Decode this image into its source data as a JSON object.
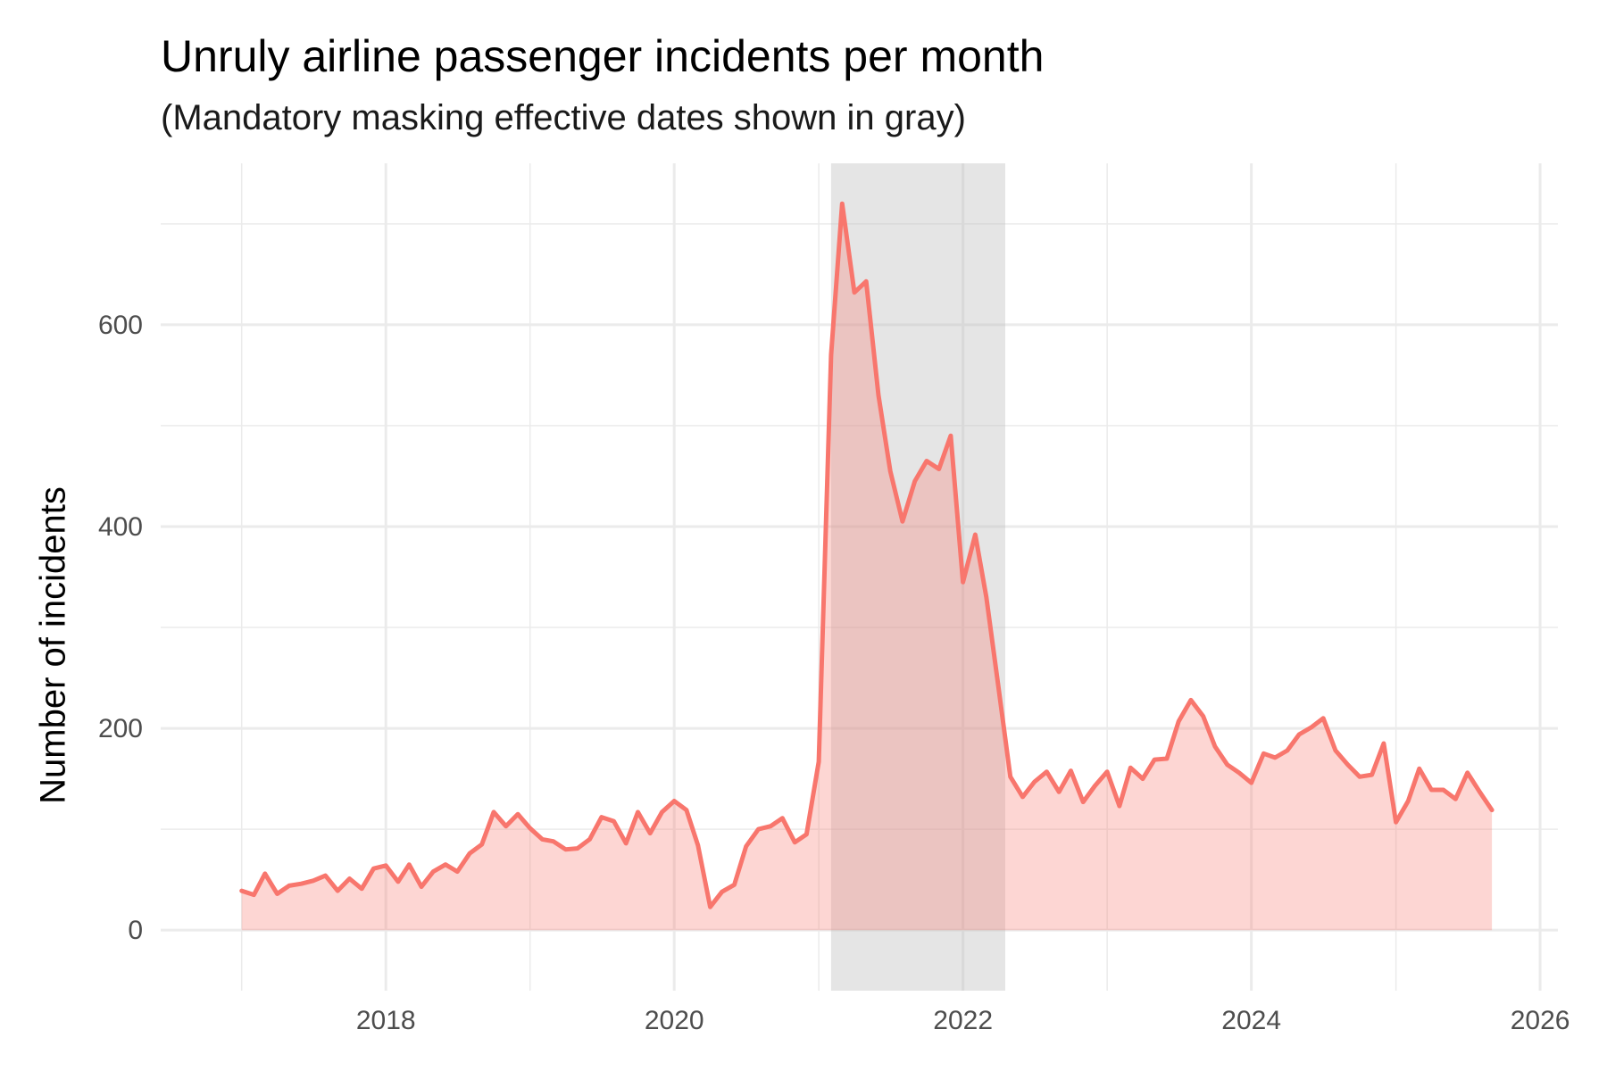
{
  "title": "Unruly airline passenger incidents per month",
  "subtitle": "(Mandatory masking effective dates shown in gray)",
  "colors": {
    "line": "#F8766D",
    "area": "#F8766D",
    "band": "#bdbdbd",
    "grid": "#ebebeb"
  },
  "chart_data": {
    "type": "area",
    "title": "Unruly airline passenger incidents per month",
    "subtitle": "(Mandatory masking effective dates shown in gray)",
    "xlabel": "",
    "ylabel": "Number of incidents",
    "xlim": [
      "2016-06-10",
      "2026-02-15"
    ],
    "ylim": [
      -60,
      760
    ],
    "x_ticks": [
      "2018-01-01",
      "2020-01-01",
      "2022-01-01",
      "2024-01-01",
      "2026-01-01"
    ],
    "x_tick_labels": [
      "2018",
      "2020",
      "2022",
      "2024",
      "2026"
    ],
    "x_minor_ticks": [
      "2017-01-01",
      "2019-01-01",
      "2021-01-01",
      "2023-01-01",
      "2025-01-01"
    ],
    "y_ticks": [
      0,
      200,
      400,
      600
    ],
    "y_tick_labels": [
      "0",
      "200",
      "400",
      "600"
    ],
    "y_minor_ticks": [
      100,
      300,
      500,
      700
    ],
    "grid": true,
    "legend": "none",
    "shaded_interval": {
      "start": "2021-02-01",
      "end": "2022-04-18",
      "meaning": "Mandatory masking effective dates"
    },
    "series": [
      {
        "x": [
          "2017-01-01",
          "2017-02-01",
          "2017-03-01",
          "2017-04-01",
          "2017-05-01",
          "2017-06-01",
          "2017-07-01",
          "2017-08-01",
          "2017-09-01",
          "2017-10-01",
          "2017-11-01",
          "2017-12-01",
          "2018-01-01",
          "2018-02-01",
          "2018-03-01",
          "2018-04-01",
          "2018-05-01",
          "2018-06-01",
          "2018-07-01",
          "2018-08-01",
          "2018-09-01",
          "2018-10-01",
          "2018-11-01",
          "2018-12-01",
          "2019-01-01",
          "2019-02-01",
          "2019-03-01",
          "2019-04-01",
          "2019-05-01",
          "2019-06-01",
          "2019-07-01",
          "2019-08-01",
          "2019-09-01",
          "2019-10-01",
          "2019-11-01",
          "2019-12-01",
          "2020-01-01",
          "2020-02-01",
          "2020-03-01",
          "2020-04-01",
          "2020-05-01",
          "2020-06-01",
          "2020-07-01",
          "2020-08-01",
          "2020-09-01",
          "2020-10-01",
          "2020-11-01",
          "2020-12-01",
          "2021-01-01",
          "2021-02-01",
          "2021-03-01",
          "2021-04-01",
          "2021-05-01",
          "2021-06-01",
          "2021-07-01",
          "2021-08-01",
          "2021-09-01",
          "2021-10-01",
          "2021-11-01",
          "2021-12-01",
          "2022-01-01",
          "2022-02-01",
          "2022-03-01",
          "2022-04-01",
          "2022-05-01",
          "2022-06-01",
          "2022-07-01",
          "2022-08-01",
          "2022-09-01",
          "2022-10-01",
          "2022-11-01",
          "2022-12-01",
          "2023-01-01",
          "2023-02-01",
          "2023-03-01",
          "2023-04-01",
          "2023-05-01",
          "2023-06-01",
          "2023-07-01",
          "2023-08-01",
          "2023-09-01",
          "2023-10-01",
          "2023-11-01",
          "2023-12-01",
          "2024-01-01",
          "2024-02-01",
          "2024-03-01",
          "2024-04-01",
          "2024-05-01",
          "2024-06-01",
          "2024-07-01",
          "2024-08-01",
          "2024-09-01",
          "2024-10-01",
          "2024-11-01",
          "2024-12-01",
          "2025-01-01",
          "2025-02-01",
          "2025-03-01",
          "2025-04-01",
          "2025-05-01",
          "2025-06-01",
          "2025-07-01",
          "2025-08-01",
          "2025-09-01"
        ],
        "y": [
          39,
          35,
          56,
          36,
          44,
          46,
          49,
          54,
          39,
          51,
          41,
          61,
          64,
          48,
          65,
          43,
          58,
          65,
          58,
          76,
          85,
          117,
          103,
          115,
          101,
          90,
          88,
          80,
          81,
          90,
          112,
          108,
          86,
          117,
          96,
          117,
          128,
          119,
          84,
          23,
          38,
          45,
          83,
          100,
          103,
          111,
          87,
          95,
          167,
          570,
          720,
          632,
          643,
          530,
          455,
          405,
          445,
          465,
          457,
          490,
          345,
          392,
          330,
          240,
          152,
          132,
          147,
          157,
          137,
          158,
          127,
          143,
          157,
          123,
          161,
          150,
          169,
          170,
          207,
          228,
          212,
          182,
          164,
          156,
          146,
          175,
          171,
          178,
          194,
          201,
          210,
          178,
          164,
          152,
          154,
          185,
          107,
          128,
          160,
          139,
          139,
          130,
          156,
          137,
          119
        ]
      }
    ]
  }
}
